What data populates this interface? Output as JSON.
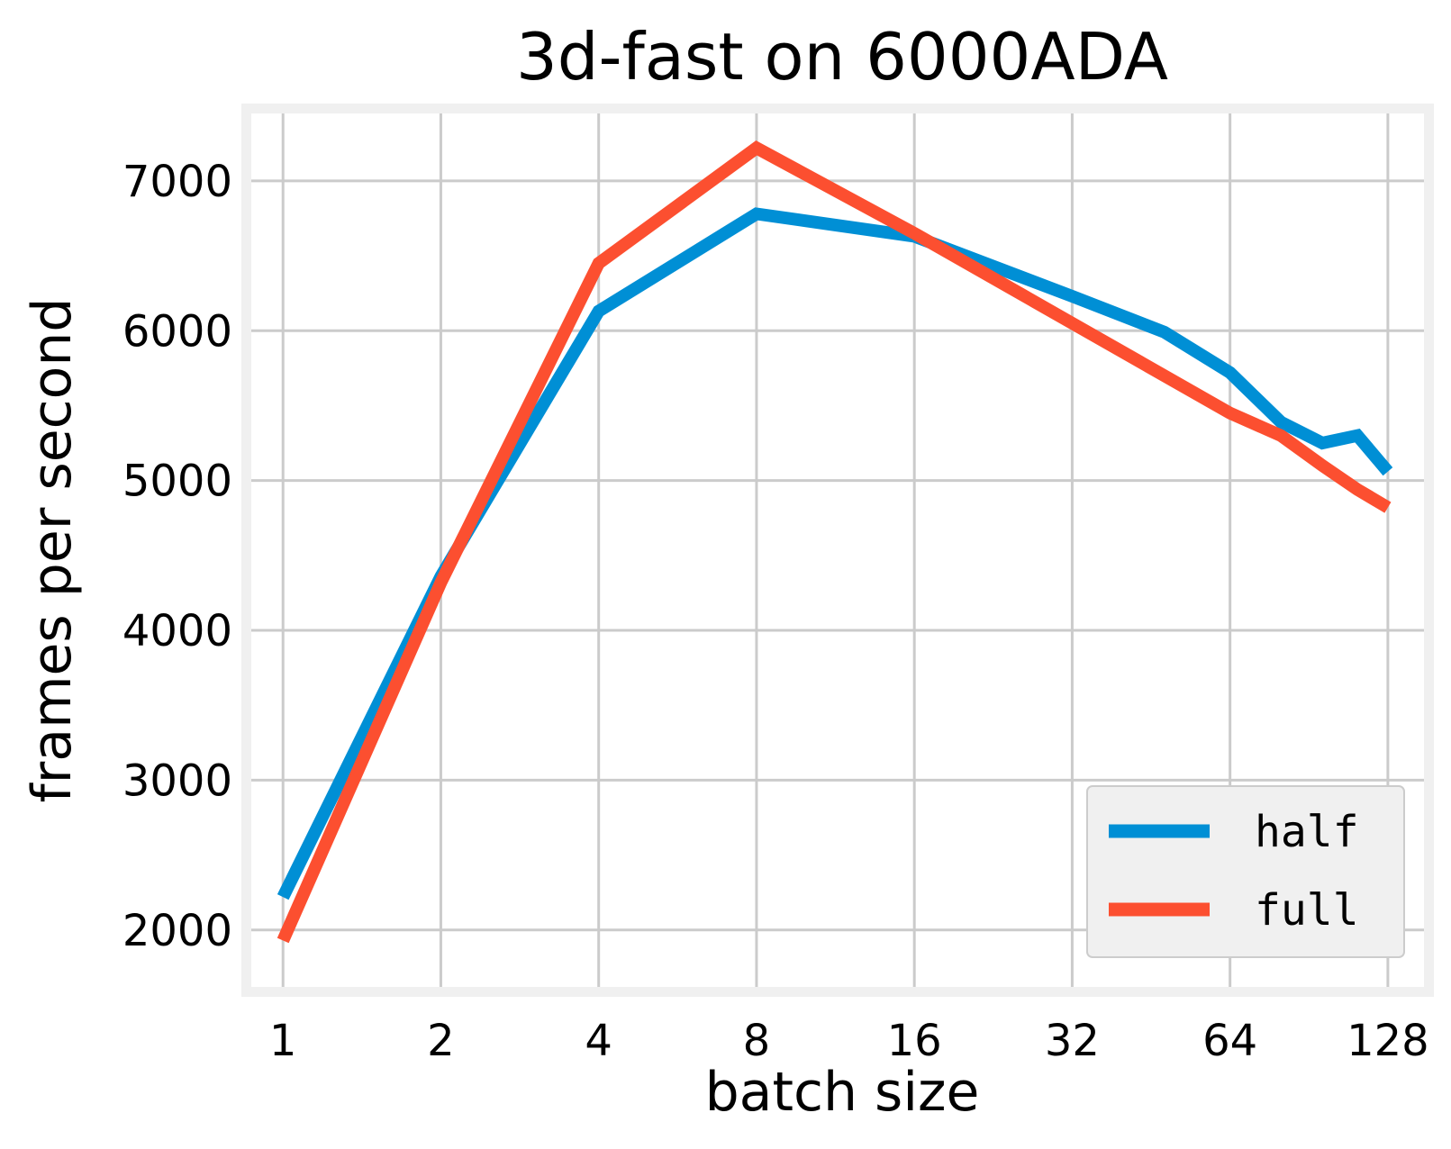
{
  "chart_data": {
    "type": "line",
    "title": "3d-fast on 6000ADA",
    "xlabel": "batch size",
    "ylabel": "frames per second",
    "x_scale": "log2",
    "xlim": [
      0.87,
      150
    ],
    "ylim": [
      1620,
      7450
    ],
    "x_ticks": [
      1,
      2,
      4,
      8,
      16,
      32,
      64,
      128
    ],
    "x_tick_labels": [
      "1",
      "2",
      "4",
      "8",
      "16",
      "32",
      "64",
      "128"
    ],
    "y_ticks": [
      2000,
      3000,
      4000,
      5000,
      6000,
      7000
    ],
    "y_tick_labels": [
      "2000",
      "3000",
      "4000",
      "5000",
      "6000",
      "7000"
    ],
    "grid": true,
    "legend_position": "lower-right",
    "series": [
      {
        "name": "half",
        "color": "#008fd5",
        "x": [
          1,
          2,
          4,
          8,
          16,
          32,
          48,
          64,
          80,
          96,
          112,
          128
        ],
        "y": [
          2220,
          4360,
          6130,
          6780,
          6630,
          6230,
          5990,
          5720,
          5390,
          5250,
          5300,
          5060
        ]
      },
      {
        "name": "full",
        "color": "#fc4f30",
        "x": [
          1,
          2,
          4,
          8,
          16,
          32,
          64,
          80,
          96,
          112,
          128
        ],
        "y": [
          1930,
          4320,
          6450,
          7220,
          6650,
          6050,
          5450,
          5300,
          5100,
          4940,
          4820
        ]
      }
    ]
  }
}
